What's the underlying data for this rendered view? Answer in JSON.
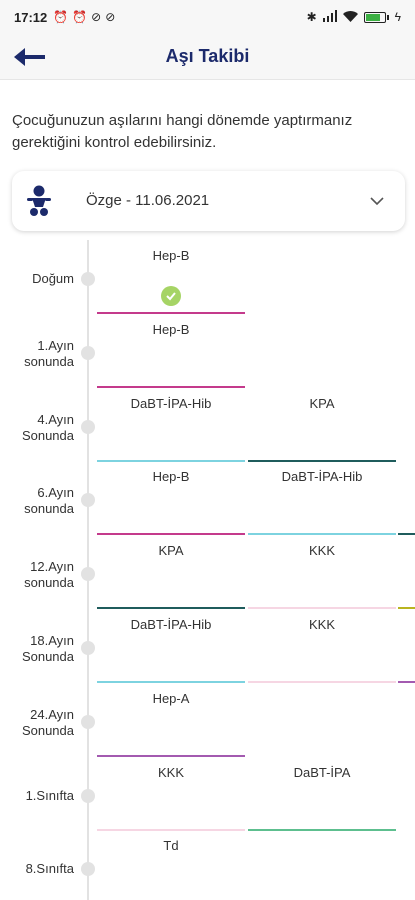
{
  "status_bar": {
    "time": "17:12",
    "left_icons": [
      "alarm-off-icon",
      "alarm-icon",
      "no-disturb-icon",
      "no-disturb-icon"
    ],
    "right_icons": [
      "bluetooth-icon",
      "signal-icon",
      "wifi-icon",
      "battery-icon",
      "charging-icon"
    ],
    "battery_percent": 80
  },
  "appbar": {
    "title": "Aşı Takibi",
    "back_icon": "back-arrow-icon"
  },
  "intro_text": "Çocuğunuzun aşılarını hangi dönemde yaptırmanız gerektiğini kontrol edebilirsiniz.",
  "child_selector": {
    "icon": "baby-icon",
    "value": "Özge - 11.06.2021",
    "chevron": "chevron-down-icon"
  },
  "colors": {
    "magenta": "#c43a8c",
    "cyan": "#7dd3e0",
    "dark_teal": "#1f5c5c",
    "pink_light": "#f6d6e3",
    "purple": "#a35ab0",
    "green": "#5dbf8f",
    "olive": "#b9b41f",
    "check_green": "#a6d465"
  },
  "periods": [
    {
      "label_lines": [
        "Doğum"
      ],
      "vaccines": [
        {
          "name": "Hep-B",
          "done": true,
          "color": "#c43a8c"
        }
      ]
    },
    {
      "label_lines": [
        "1.Ayın",
        "sonunda"
      ],
      "vaccines": [
        {
          "name": "Hep-B",
          "done": false,
          "color": "#c43a8c"
        }
      ]
    },
    {
      "label_lines": [
        "4.Ayın",
        "Sonunda"
      ],
      "vaccines": [
        {
          "name": "DaBT-İPA-Hib",
          "done": false,
          "color": "#7dd3e0"
        },
        {
          "name": "KPA",
          "done": false,
          "color": "#1f5c5c"
        }
      ]
    },
    {
      "label_lines": [
        "6.Ayın",
        "sonunda"
      ],
      "vaccines": [
        {
          "name": "Hep-B",
          "done": false,
          "color": "#c43a8c"
        },
        {
          "name": "DaBT-İPA-Hib",
          "done": false,
          "color": "#7dd3e0"
        }
      ]
    },
    {
      "label_lines": [
        "12.Ayın",
        "sonunda"
      ],
      "vaccines": [
        {
          "name": "KPA",
          "done": false,
          "color": "#1f5c5c"
        },
        {
          "name": "KKK",
          "done": false,
          "color": "#f6d6e3"
        }
      ]
    },
    {
      "label_lines": [
        "18.Ayın",
        "Sonunda"
      ],
      "vaccines": [
        {
          "name": "DaBT-İPA-Hib",
          "done": false,
          "color": "#7dd3e0"
        },
        {
          "name": "KKK",
          "done": false,
          "color": "#f6d6e3"
        }
      ]
    },
    {
      "label_lines": [
        "24.Ayın",
        "Sonunda"
      ],
      "vaccines": [
        {
          "name": "Hep-A",
          "done": false,
          "color": "#a35ab0"
        }
      ]
    },
    {
      "label_lines": [
        "1.Sınıfta"
      ],
      "vaccines": [
        {
          "name": "KKK",
          "done": false,
          "color": "#f6d6e3"
        },
        {
          "name": "DaBT-İPA",
          "done": false,
          "color": "#5dbf8f"
        }
      ]
    },
    {
      "label_lines": [
        "8.Sınıfta"
      ],
      "vaccines": [
        {
          "name": "Td",
          "done": false,
          "color": ""
        }
      ]
    }
  ],
  "peek_colors": [
    "",
    "",
    "",
    "#1f5c5c",
    "#b9b41f",
    "#a35ab0",
    "",
    "",
    ""
  ]
}
